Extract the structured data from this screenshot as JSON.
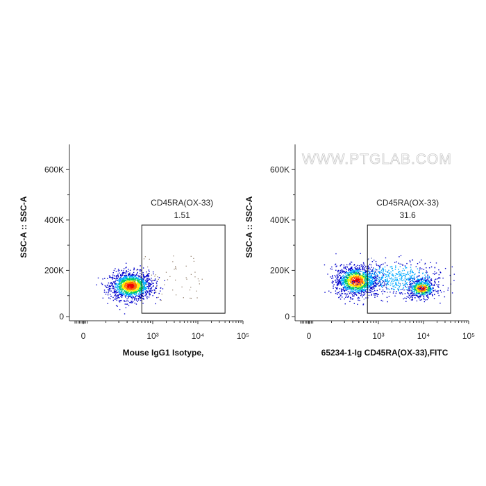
{
  "watermark": "WWW.PTGLAB.COM",
  "chart_data": [
    {
      "type": "scatter",
      "title": "",
      "xlabel": "Mouse IgG1 Isotype,",
      "ylabel": "SSC-A :: SSC-A",
      "x_scale": "biexponential",
      "x_tick_labels": [
        "0",
        "10³",
        "10⁴",
        "10⁵"
      ],
      "y_tick_labels": [
        "0",
        "200K",
        "400K",
        "600K"
      ],
      "ylim": [
        0,
        700000
      ],
      "gate": {
        "name": "CD45RA(OX-33)",
        "percent": "1.51",
        "x_range": [
          600,
          40000
        ],
        "y_range": [
          30000,
          380000
        ]
      },
      "populations": [
        {
          "name": "",
          "x_center": 350,
          "y_center": 140000,
          "x_spread": 0.5,
          "y_spread": 50000,
          "count": 1400
        }
      ],
      "colors": [
        "#0000cc",
        "#00aaff",
        "#00cc66",
        "#ffee00",
        "#ff6600",
        "#ee0000"
      ]
    },
    {
      "type": "scatter",
      "title": "",
      "xlabel": "65234-1-Ig CD45RA(OX-33),FITC",
      "ylabel": "SSC-A :: SSC-A",
      "x_scale": "biexponential",
      "x_tick_labels": [
        "0",
        "10³",
        "10⁴",
        "10⁵"
      ],
      "y_tick_labels": [
        "0",
        "200K",
        "400K",
        "600K"
      ],
      "ylim": [
        0,
        700000
      ],
      "gate": {
        "name": "CD45RA(OX-33)",
        "percent": "31.6",
        "x_range": [
          600,
          40000
        ],
        "y_range": [
          30000,
          380000
        ]
      },
      "populations": [
        {
          "name": "",
          "x_center": 350,
          "y_center": 160000,
          "x_spread": 0.5,
          "y_spread": 55000,
          "count": 1300
        },
        {
          "name": "",
          "x_center": 9000,
          "y_center": 130000,
          "x_spread": 0.35,
          "y_spread": 35000,
          "count": 600
        },
        {
          "name": "",
          "x_center": 2500,
          "y_center": 170000,
          "x_spread": 1.1,
          "y_spread": 60000,
          "count": 500
        }
      ],
      "colors": [
        "#0000cc",
        "#00aaff",
        "#00cc66",
        "#ffee00",
        "#ff6600",
        "#ee0000"
      ]
    }
  ]
}
